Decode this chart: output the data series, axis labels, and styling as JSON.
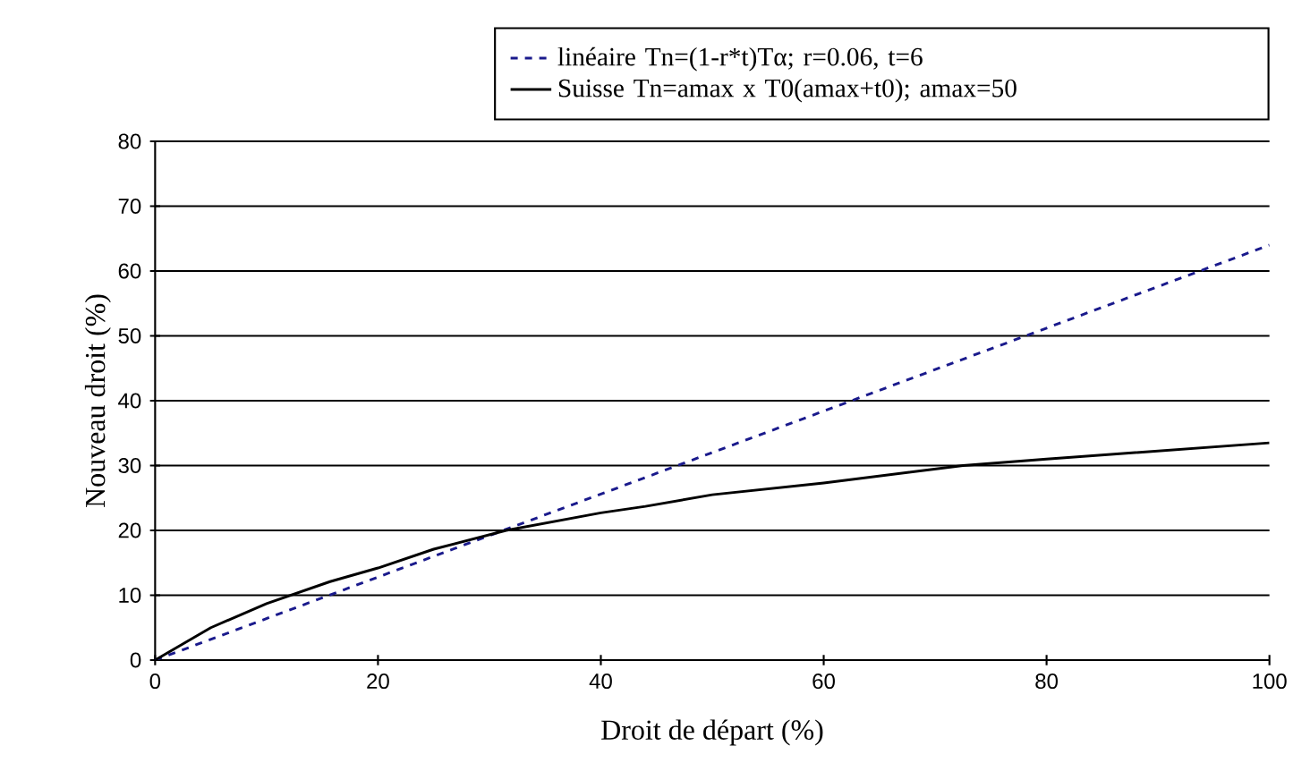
{
  "chart_data": {
    "type": "line",
    "xlabel": "Droit de départ (%)",
    "ylabel": "Nouveau droit (%)",
    "xlim": [
      0,
      100
    ],
    "ylim": [
      0,
      80
    ],
    "xticks": [
      0,
      20,
      40,
      60,
      80,
      100
    ],
    "yticks": [
      0,
      10,
      20,
      30,
      40,
      50,
      60,
      70,
      80
    ],
    "grid": "y",
    "legend": "top right",
    "series": [
      {
        "name": "linéaire Tn=(1-r*t)Tα; r=0.06, t=6",
        "color": "#1a1a8c",
        "line_style": "dashed",
        "x": [
          0,
          100
        ],
        "values": [
          0,
          64
        ]
      },
      {
        "name": "Suisse Tn=amax x T0(amax+t0); amax=50",
        "color": "#000000",
        "line_style": "solid",
        "x": [
          0,
          5,
          10,
          15.7,
          20,
          25,
          31.5,
          40,
          44,
          50,
          60,
          72.5,
          80,
          100
        ],
        "values": [
          0,
          5.0,
          8.7,
          12.1,
          14.2,
          17.1,
          20,
          22.7,
          23.7,
          25.5,
          27.3,
          30,
          31,
          33.5
        ]
      }
    ]
  }
}
